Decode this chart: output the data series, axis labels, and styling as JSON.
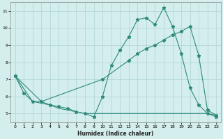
{
  "line1_x": [
    0,
    1,
    2,
    3,
    4,
    5,
    6,
    7,
    8,
    9,
    10,
    11,
    12,
    13,
    14,
    15,
    16,
    17,
    18,
    19,
    20,
    21,
    22,
    23
  ],
  "line1_y": [
    7.2,
    6.2,
    5.7,
    5.7,
    5.5,
    5.4,
    5.3,
    5.1,
    5.0,
    4.8,
    6.0,
    7.8,
    8.7,
    9.5,
    10.5,
    10.6,
    10.2,
    11.2,
    10.1,
    8.5,
    6.5,
    5.5,
    5.0,
    4.8
  ],
  "line2_x": [
    0,
    3,
    10,
    13,
    14,
    15,
    16,
    17,
    18,
    19,
    20,
    21,
    22,
    23
  ],
  "line2_y": [
    7.2,
    5.7,
    7.0,
    8.1,
    8.5,
    8.8,
    9.0,
    9.3,
    9.6,
    9.8,
    10.1,
    8.4,
    5.2,
    4.9
  ],
  "line3_x": [
    0,
    2,
    3,
    4,
    5,
    6,
    7,
    8,
    9,
    10,
    11,
    12,
    13,
    14,
    15,
    16,
    17,
    18,
    19,
    20,
    21,
    22,
    23
  ],
  "line3_y": [
    7.2,
    5.7,
    5.6,
    5.5,
    5.3,
    5.2,
    5.1,
    5.0,
    5.0,
    5.0,
    5.0,
    5.0,
    5.0,
    5.0,
    5.0,
    5.0,
    5.0,
    5.0,
    5.0,
    5.0,
    5.0,
    5.0,
    4.9
  ],
  "line_color": "#2e8b7a",
  "bg_color": "#d4eded",
  "grid_color": "#aed4d4",
  "xlabel": "Humidex (Indice chaleur)",
  "xlim": [
    -0.5,
    23.5
  ],
  "ylim": [
    4.5,
    11.5
  ],
  "yticks": [
    5,
    6,
    7,
    8,
    9,
    10,
    11
  ],
  "xticks": [
    0,
    1,
    2,
    3,
    4,
    5,
    6,
    7,
    8,
    9,
    10,
    11,
    12,
    13,
    14,
    15,
    16,
    17,
    18,
    19,
    20,
    21,
    22,
    23
  ]
}
